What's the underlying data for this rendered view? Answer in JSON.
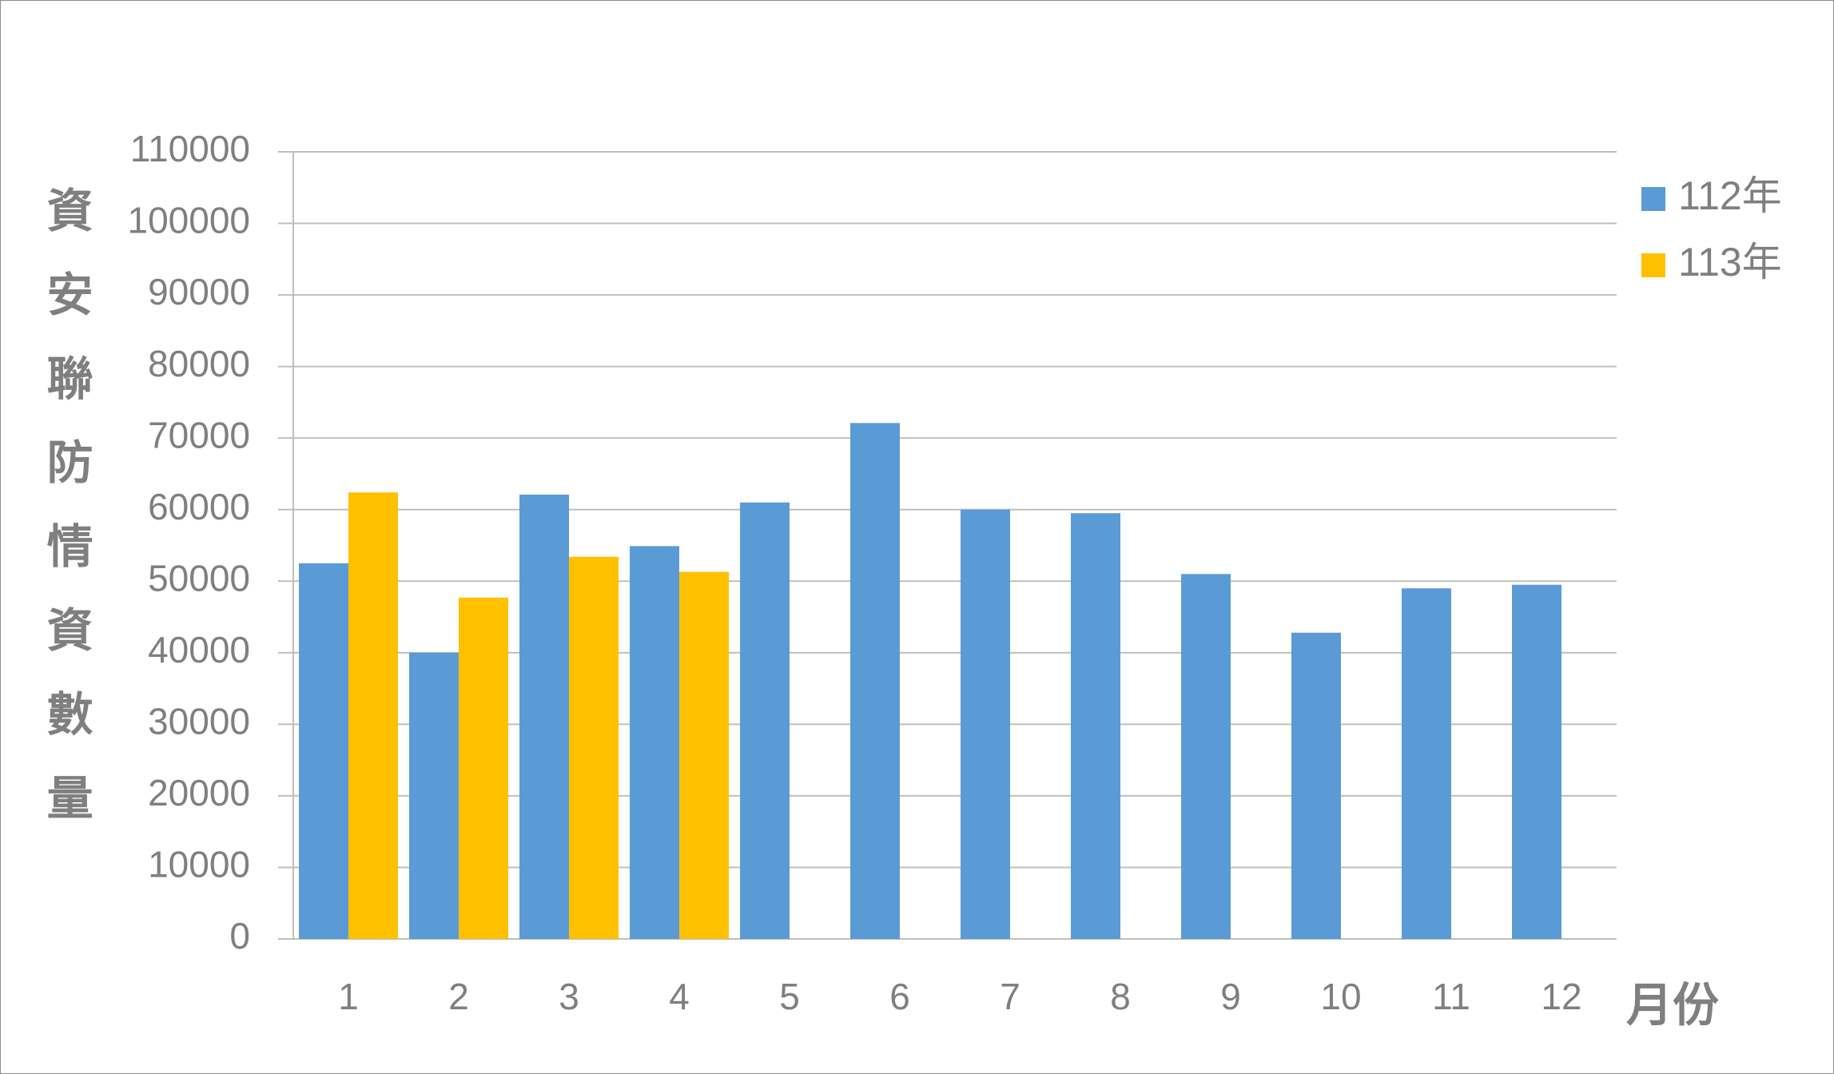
{
  "chart_data": {
    "type": "bar",
    "y_label": "資安聯防情資數量",
    "x_label": "月份",
    "categories": [
      "1",
      "2",
      "3",
      "4",
      "5",
      "6",
      "7",
      "8",
      "9",
      "10",
      "11",
      "12"
    ],
    "series": [
      {
        "name": "112年",
        "color": "#5b9bd5",
        "values": [
          52500,
          40000,
          62100,
          54900,
          61000,
          72100,
          60000,
          59500,
          51000,
          42800,
          49000,
          49500
        ]
      },
      {
        "name": "113年",
        "color": "#ffc000",
        "values": [
          62400,
          47700,
          53400,
          51300,
          null,
          null,
          null,
          null,
          null,
          null,
          null,
          null
        ]
      }
    ],
    "ylim": [
      0,
      110000
    ],
    "yticks": [
      0,
      10000,
      20000,
      30000,
      40000,
      50000,
      60000,
      70000,
      80000,
      90000,
      100000,
      110000
    ],
    "grid": true,
    "legend": "right"
  }
}
